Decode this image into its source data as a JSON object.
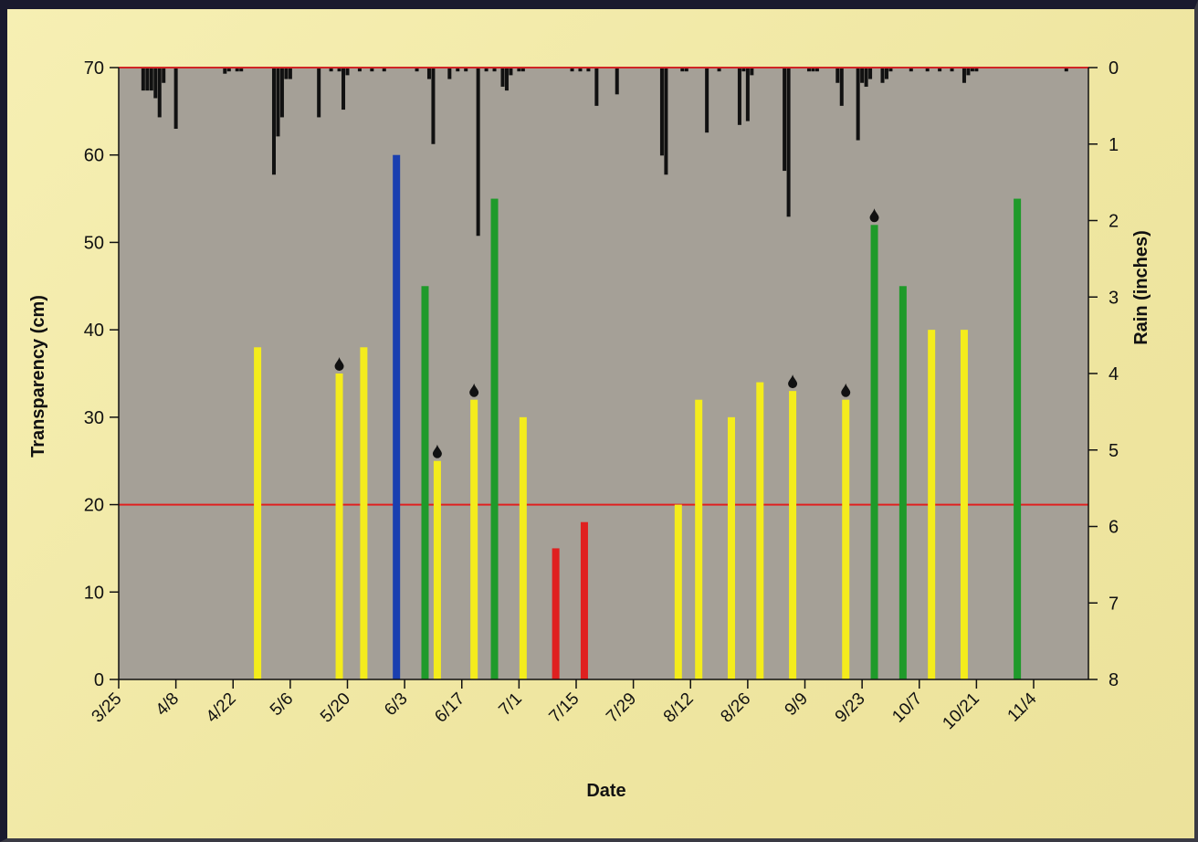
{
  "chart_data": {
    "type": "bar",
    "xlabel": "Date",
    "ylabel": "Transparency (cm)",
    "y2label": "Rain (inches)",
    "x_ticks": [
      "3/25",
      "4/8",
      "4/22",
      "5/6",
      "5/20",
      "6/3",
      "6/17",
      "7/1",
      "7/15",
      "7/29",
      "8/12",
      "8/26",
      "9/9",
      "9/23",
      "10/7",
      "10/21",
      "11/4"
    ],
    "ylim": [
      0,
      70
    ],
    "y_ticks": [
      0,
      10,
      20,
      30,
      40,
      50,
      60,
      70
    ],
    "y2lim": [
      0,
      8
    ],
    "y2_ticks": [
      0,
      1,
      2,
      3,
      4,
      5,
      6,
      7,
      8
    ],
    "y2_inverted": true,
    "reference_line": {
      "value": 20,
      "color": "#e02020"
    },
    "plot_background": "#a5a097",
    "colors": {
      "yellow": "#f4ec1c",
      "green": "#1f9a2a",
      "blue": "#1a3fb0",
      "red": "#e02020",
      "rain": "#111111",
      "marker": "#111111"
    },
    "transparency": [
      {
        "date": "4/28",
        "value": 38,
        "color": "yellow",
        "marker": false
      },
      {
        "date": "5/18",
        "value": 35,
        "color": "yellow",
        "marker": true
      },
      {
        "date": "5/24",
        "value": 38,
        "color": "yellow",
        "marker": false
      },
      {
        "date": "6/1",
        "value": 60,
        "color": "blue",
        "marker": false
      },
      {
        "date": "6/8",
        "value": 45,
        "color": "green",
        "marker": false
      },
      {
        "date": "6/11",
        "value": 25,
        "color": "yellow",
        "marker": true
      },
      {
        "date": "6/20",
        "value": 32,
        "color": "yellow",
        "marker": true
      },
      {
        "date": "6/25",
        "value": 55,
        "color": "green",
        "marker": false
      },
      {
        "date": "7/2",
        "value": 30,
        "color": "yellow",
        "marker": false
      },
      {
        "date": "7/10",
        "value": 15,
        "color": "red",
        "marker": false
      },
      {
        "date": "7/17",
        "value": 18,
        "color": "red",
        "marker": false
      },
      {
        "date": "8/9",
        "value": 20,
        "color": "yellow",
        "marker": false
      },
      {
        "date": "8/14",
        "value": 32,
        "color": "yellow",
        "marker": false
      },
      {
        "date": "8/22",
        "value": 30,
        "color": "yellow",
        "marker": false
      },
      {
        "date": "8/29",
        "value": 34,
        "color": "yellow",
        "marker": false
      },
      {
        "date": "9/6",
        "value": 33,
        "color": "yellow",
        "marker": true
      },
      {
        "date": "9/19",
        "value": 32,
        "color": "yellow",
        "marker": true
      },
      {
        "date": "9/26",
        "value": 52,
        "color": "green",
        "marker": true
      },
      {
        "date": "10/3",
        "value": 45,
        "color": "green",
        "marker": false
      },
      {
        "date": "10/10",
        "value": 40,
        "color": "yellow",
        "marker": false
      },
      {
        "date": "10/18",
        "value": 40,
        "color": "yellow",
        "marker": false
      },
      {
        "date": "10/31",
        "value": 55,
        "color": "green",
        "marker": false
      }
    ],
    "rain_series": [
      {
        "date": "3/31",
        "value": 0.3
      },
      {
        "date": "4/1",
        "value": 0.3
      },
      {
        "date": "4/2",
        "value": 0.3
      },
      {
        "date": "4/3",
        "value": 0.4
      },
      {
        "date": "4/4",
        "value": 0.65
      },
      {
        "date": "4/5",
        "value": 0.2
      },
      {
        "date": "4/8",
        "value": 0.8
      },
      {
        "date": "4/20",
        "value": 0.08
      },
      {
        "date": "4/21",
        "value": 0.05
      },
      {
        "date": "4/23",
        "value": 0.05
      },
      {
        "date": "4/24",
        "value": 0.05
      },
      {
        "date": "5/2",
        "value": 1.4
      },
      {
        "date": "5/3",
        "value": 0.9
      },
      {
        "date": "5/4",
        "value": 0.65
      },
      {
        "date": "5/5",
        "value": 0.15
      },
      {
        "date": "5/6",
        "value": 0.15
      },
      {
        "date": "5/13",
        "value": 0.65
      },
      {
        "date": "5/16",
        "value": 0.05
      },
      {
        "date": "5/18",
        "value": 0.05
      },
      {
        "date": "5/19",
        "value": 0.55
      },
      {
        "date": "5/20",
        "value": 0.1
      },
      {
        "date": "5/23",
        "value": 0.05
      },
      {
        "date": "5/26",
        "value": 0.05
      },
      {
        "date": "5/29",
        "value": 0.05
      },
      {
        "date": "6/6",
        "value": 0.05
      },
      {
        "date": "6/9",
        "value": 0.15
      },
      {
        "date": "6/10",
        "value": 1.0
      },
      {
        "date": "6/14",
        "value": 0.15
      },
      {
        "date": "6/16",
        "value": 0.05
      },
      {
        "date": "6/18",
        "value": 0.05
      },
      {
        "date": "6/21",
        "value": 2.2
      },
      {
        "date": "6/23",
        "value": 0.05
      },
      {
        "date": "6/25",
        "value": 0.05
      },
      {
        "date": "6/27",
        "value": 0.25
      },
      {
        "date": "6/28",
        "value": 0.3
      },
      {
        "date": "6/29",
        "value": 0.1
      },
      {
        "date": "7/1",
        "value": 0.05
      },
      {
        "date": "7/2",
        "value": 0.05
      },
      {
        "date": "7/14",
        "value": 0.05
      },
      {
        "date": "7/16",
        "value": 0.05
      },
      {
        "date": "7/18",
        "value": 0.05
      },
      {
        "date": "7/20",
        "value": 0.5
      },
      {
        "date": "7/25",
        "value": 0.35
      },
      {
        "date": "8/5",
        "value": 1.15
      },
      {
        "date": "8/6",
        "value": 1.4
      },
      {
        "date": "8/10",
        "value": 0.05
      },
      {
        "date": "8/11",
        "value": 0.05
      },
      {
        "date": "8/16",
        "value": 0.85
      },
      {
        "date": "8/19",
        "value": 0.05
      },
      {
        "date": "8/24",
        "value": 0.75
      },
      {
        "date": "8/25",
        "value": 0.05
      },
      {
        "date": "8/26",
        "value": 0.7
      },
      {
        "date": "8/27",
        "value": 0.1
      },
      {
        "date": "9/4",
        "value": 1.35
      },
      {
        "date": "9/5",
        "value": 1.95
      },
      {
        "date": "9/10",
        "value": 0.05
      },
      {
        "date": "9/11",
        "value": 0.05
      },
      {
        "date": "9/12",
        "value": 0.05
      },
      {
        "date": "9/17",
        "value": 0.2
      },
      {
        "date": "9/18",
        "value": 0.5
      },
      {
        "date": "9/22",
        "value": 0.95
      },
      {
        "date": "9/23",
        "value": 0.2
      },
      {
        "date": "9/24",
        "value": 0.25
      },
      {
        "date": "9/25",
        "value": 0.15
      },
      {
        "date": "9/28",
        "value": 0.2
      },
      {
        "date": "9/29",
        "value": 0.15
      },
      {
        "date": "9/30",
        "value": 0.05
      },
      {
        "date": "10/5",
        "value": 0.05
      },
      {
        "date": "10/9",
        "value": 0.05
      },
      {
        "date": "10/12",
        "value": 0.05
      },
      {
        "date": "10/15",
        "value": 0.05
      },
      {
        "date": "10/18",
        "value": 0.2
      },
      {
        "date": "10/19",
        "value": 0.1
      },
      {
        "date": "10/20",
        "value": 0.05
      },
      {
        "date": "10/21",
        "value": 0.05
      },
      {
        "date": "11/12",
        "value": 0.05
      }
    ]
  }
}
